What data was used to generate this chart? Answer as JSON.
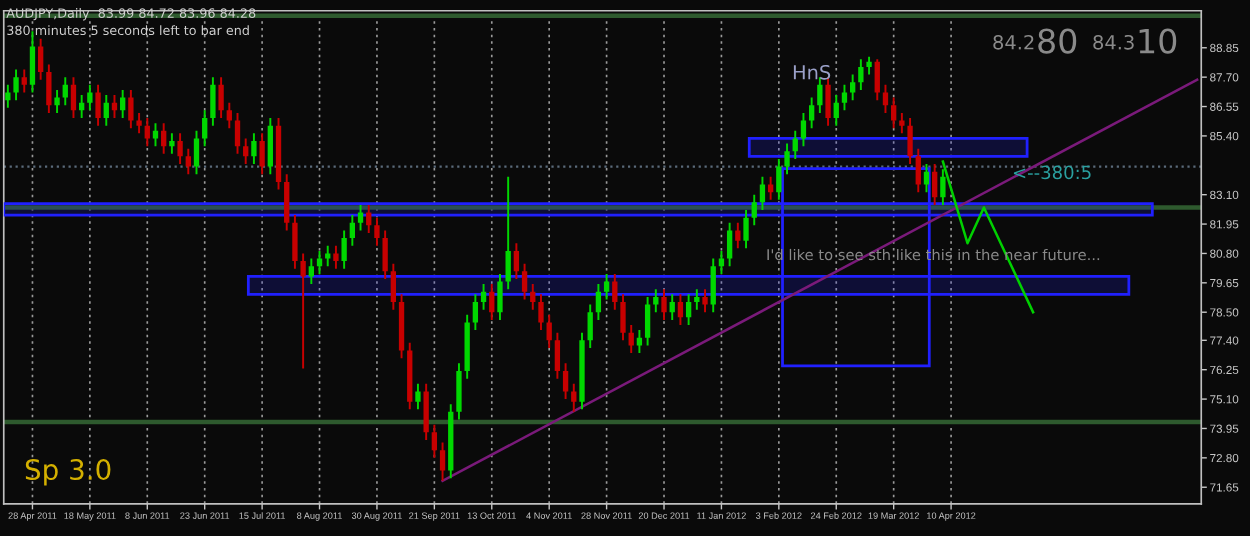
{
  "chart_data": {
    "type": "candlestick",
    "title": "AUDJPY,Daily  83.99 84.72 83.96 84.28",
    "subtitle": "380 minutes 5 seconds left to bar end",
    "categories": [
      null,
      null,
      null,
      "28 Apr 2011",
      null,
      null,
      null,
      null,
      null,
      null,
      "18 May 2011",
      null,
      null,
      null,
      null,
      null,
      null,
      "8 Jun 2011",
      null,
      null,
      null,
      null,
      null,
      null,
      "23 Jun 2011",
      null,
      null,
      null,
      null,
      null,
      null,
      "15 Jul 2011",
      null,
      null,
      null,
      null,
      null,
      null,
      "8 Aug 2011",
      null,
      null,
      null,
      null,
      null,
      null,
      "30 Aug 2011",
      null,
      null,
      null,
      null,
      null,
      null,
      "21 Sep 2011",
      null,
      null,
      null,
      null,
      null,
      null,
      "13 Oct 2011",
      null,
      null,
      null,
      null,
      null,
      null,
      "4 Nov 2011",
      null,
      null,
      null,
      null,
      null,
      null,
      "28 Nov 2011",
      null,
      null,
      null,
      null,
      null,
      null,
      "20 Dec 2011",
      null,
      null,
      null,
      null,
      null,
      null,
      "11 Jan 2012",
      null,
      null,
      null,
      null,
      null,
      null,
      "3 Feb 2012",
      null,
      null,
      null,
      null,
      null,
      null,
      "24 Feb 2012",
      null,
      null,
      null,
      null,
      null,
      null,
      "19 Mar 2012",
      null,
      null,
      null,
      null,
      null,
      null,
      "10 Apr 2012",
      null,
      null,
      null,
      null,
      null,
      null,
      null,
      null,
      null,
      null,
      null,
      null,
      null,
      null,
      null,
      null,
      null,
      null,
      null,
      null,
      null,
      null,
      null,
      null,
      null,
      null,
      null,
      null,
      null,
      null
    ],
    "ohlc": [
      [
        86.8,
        87.4,
        86.5,
        87.1
      ],
      [
        87.1,
        88.0,
        86.8,
        87.7
      ],
      [
        87.7,
        88.0,
        87.1,
        87.4
      ],
      [
        87.4,
        89.5,
        87.1,
        88.9
      ],
      [
        88.9,
        89.2,
        87.6,
        87.9
      ],
      [
        87.9,
        88.2,
        86.3,
        86.6
      ],
      [
        86.6,
        87.2,
        86.3,
        86.9
      ],
      [
        86.9,
        87.7,
        86.6,
        87.4
      ],
      [
        87.4,
        87.7,
        86.1,
        86.4
      ],
      [
        86.4,
        87.0,
        86.1,
        86.7
      ],
      [
        86.7,
        87.4,
        86.4,
        87.1
      ],
      [
        87.1,
        87.4,
        85.8,
        86.1
      ],
      [
        86.1,
        87.0,
        85.8,
        86.7
      ],
      [
        86.7,
        87.0,
        86.1,
        86.4
      ],
      [
        86.4,
        87.2,
        86.1,
        86.9
      ],
      [
        86.9,
        87.2,
        85.7,
        86.0
      ],
      [
        86.0,
        86.3,
        85.5,
        85.8
      ],
      [
        85.8,
        86.1,
        85.0,
        85.3
      ],
      [
        85.3,
        85.9,
        85.0,
        85.6
      ],
      [
        85.6,
        85.9,
        84.7,
        85.0
      ],
      [
        85.0,
        85.5,
        84.7,
        85.2
      ],
      [
        85.2,
        85.5,
        84.3,
        84.6
      ],
      [
        84.6,
        84.9,
        83.9,
        84.2
      ],
      [
        84.2,
        85.6,
        83.9,
        85.3
      ],
      [
        85.3,
        86.4,
        85.0,
        86.1
      ],
      [
        86.1,
        87.7,
        85.8,
        87.4
      ],
      [
        87.4,
        87.7,
        86.1,
        86.4
      ],
      [
        86.4,
        86.7,
        85.7,
        86.0
      ],
      [
        86.0,
        86.3,
        84.7,
        85.0
      ],
      [
        85.0,
        85.3,
        84.3,
        84.6
      ],
      [
        84.6,
        85.5,
        84.3,
        85.2
      ],
      [
        85.2,
        85.5,
        83.9,
        84.2
      ],
      [
        84.2,
        86.1,
        83.9,
        85.8
      ],
      [
        85.8,
        86.1,
        83.3,
        83.6
      ],
      [
        83.6,
        83.9,
        81.7,
        82.0
      ],
      [
        82.0,
        82.3,
        80.2,
        80.5
      ],
      [
        80.5,
        80.8,
        76.3,
        79.9
      ],
      [
        79.9,
        80.6,
        79.6,
        80.3
      ],
      [
        80.3,
        80.9,
        80.0,
        80.6
      ],
      [
        80.6,
        81.1,
        80.3,
        80.8
      ],
      [
        80.8,
        81.1,
        80.2,
        80.5
      ],
      [
        80.5,
        81.7,
        80.2,
        81.4
      ],
      [
        81.4,
        82.3,
        81.1,
        82.0
      ],
      [
        82.0,
        82.7,
        81.7,
        82.4
      ],
      [
        82.4,
        82.7,
        81.6,
        81.9
      ],
      [
        81.9,
        82.2,
        81.1,
        81.4
      ],
      [
        81.4,
        81.7,
        79.8,
        80.1
      ],
      [
        80.1,
        80.4,
        78.6,
        78.9
      ],
      [
        78.9,
        79.2,
        76.7,
        77.0
      ],
      [
        77.0,
        77.3,
        74.7,
        75.0
      ],
      [
        75.0,
        75.7,
        74.7,
        75.4
      ],
      [
        75.4,
        75.7,
        73.5,
        73.8
      ],
      [
        73.8,
        74.1,
        72.8,
        73.1
      ],
      [
        73.1,
        73.4,
        71.9,
        72.3
      ],
      [
        72.3,
        74.9,
        72.0,
        74.6
      ],
      [
        74.6,
        76.5,
        74.3,
        76.2
      ],
      [
        76.2,
        78.4,
        75.9,
        78.1
      ],
      [
        78.1,
        79.2,
        77.8,
        78.9
      ],
      [
        78.9,
        79.6,
        78.6,
        79.3
      ],
      [
        79.3,
        79.6,
        78.2,
        78.5
      ],
      [
        78.5,
        80.0,
        78.2,
        79.7
      ],
      [
        79.7,
        83.8,
        79.4,
        80.9
      ],
      [
        80.9,
        81.2,
        79.8,
        80.1
      ],
      [
        80.1,
        80.4,
        79.0,
        79.3
      ],
      [
        79.3,
        79.6,
        78.6,
        78.9
      ],
      [
        78.9,
        79.2,
        77.8,
        78.1
      ],
      [
        78.1,
        78.4,
        77.1,
        77.4
      ],
      [
        77.4,
        77.7,
        75.9,
        76.2
      ],
      [
        76.2,
        76.5,
        75.1,
        75.4
      ],
      [
        75.4,
        75.7,
        74.6,
        75.0
      ],
      [
        75.0,
        77.7,
        74.7,
        77.4
      ],
      [
        77.4,
        78.8,
        77.1,
        78.5
      ],
      [
        78.5,
        79.6,
        78.2,
        79.3
      ],
      [
        79.3,
        80.0,
        79.0,
        79.7
      ],
      [
        79.7,
        80.0,
        78.6,
        78.9
      ],
      [
        78.9,
        79.2,
        77.4,
        77.7
      ],
      [
        77.7,
        78.0,
        76.9,
        77.2
      ],
      [
        77.2,
        77.8,
        76.9,
        77.5
      ],
      [
        77.5,
        79.1,
        77.2,
        78.8
      ],
      [
        78.8,
        79.4,
        78.5,
        79.1
      ],
      [
        79.1,
        79.4,
        78.2,
        78.5
      ],
      [
        78.5,
        79.2,
        78.2,
        78.9
      ],
      [
        78.9,
        79.2,
        78.0,
        78.3
      ],
      [
        78.3,
        79.2,
        78.0,
        78.9
      ],
      [
        78.9,
        79.4,
        78.6,
        79.1
      ],
      [
        79.1,
        79.4,
        78.5,
        78.8
      ],
      [
        78.8,
        80.6,
        78.5,
        80.3
      ],
      [
        80.3,
        80.9,
        80.0,
        80.6
      ],
      [
        80.6,
        82.0,
        80.3,
        81.7
      ],
      [
        81.7,
        82.0,
        81.0,
        81.3
      ],
      [
        81.3,
        82.5,
        81.0,
        82.2
      ],
      [
        82.2,
        83.1,
        81.9,
        82.8
      ],
      [
        82.8,
        83.8,
        82.5,
        83.5
      ],
      [
        83.5,
        83.8,
        82.9,
        83.2
      ],
      [
        83.2,
        84.5,
        82.9,
        84.2
      ],
      [
        84.2,
        85.1,
        83.9,
        84.8
      ],
      [
        84.8,
        85.6,
        84.5,
        85.3
      ],
      [
        85.3,
        86.3,
        85.0,
        86.0
      ],
      [
        86.0,
        86.9,
        85.7,
        86.6
      ],
      [
        86.6,
        87.7,
        86.3,
        87.4
      ],
      [
        87.4,
        87.7,
        85.8,
        86.1
      ],
      [
        86.1,
        87.0,
        85.8,
        86.7
      ],
      [
        86.7,
        87.4,
        86.4,
        87.1
      ],
      [
        87.1,
        87.8,
        86.8,
        87.5
      ],
      [
        87.5,
        88.4,
        87.2,
        88.1
      ],
      [
        88.1,
        88.5,
        87.8,
        88.3
      ],
      [
        88.3,
        88.4,
        86.8,
        87.1
      ],
      [
        87.1,
        87.4,
        86.3,
        86.6
      ],
      [
        86.6,
        86.9,
        85.7,
        86.0
      ],
      [
        86.0,
        86.3,
        85.5,
        85.8
      ],
      [
        85.8,
        86.1,
        84.3,
        84.6
      ],
      [
        84.6,
        84.9,
        83.2,
        83.5
      ],
      [
        83.5,
        84.3,
        83.2,
        84.0
      ],
      [
        84.0,
        84.3,
        82.7,
        83.0
      ],
      [
        83.0,
        84.1,
        82.7,
        83.8
      ],
      null,
      null,
      null,
      null,
      null,
      null,
      null,
      null,
      null,
      null,
      null,
      null,
      null,
      null,
      null,
      null,
      null,
      null,
      null,
      null,
      null,
      null,
      null,
      null,
      null,
      null,
      null,
      null,
      null,
      null,
      null
    ],
    "colors": [
      "#00d800",
      "#00d800",
      "#c80000",
      "#00d800",
      "#c80000",
      "#c80000",
      "#00d800",
      "#00d800",
      "#c80000",
      "#00d800",
      "#00d800",
      "#c80000",
      "#00d800",
      "#c80000",
      "#00d800",
      "#c80000",
      "#c80000",
      "#c80000",
      "#00d800",
      "#c80000",
      "#00d800",
      "#c80000",
      "#c80000",
      "#00d800",
      "#00d800",
      "#00d800",
      "#c80000",
      "#c80000",
      "#c80000",
      "#c80000",
      "#00d800",
      "#c80000",
      "#00d800",
      "#c80000",
      "#c80000",
      "#c80000",
      "#c80000",
      "#00d800",
      "#00d800",
      "#00d800",
      "#c80000",
      "#00d800",
      "#00d800",
      "#00d800",
      "#c80000",
      "#c80000",
      "#c80000",
      "#c80000",
      "#c80000",
      "#c80000",
      "#00d800",
      "#c80000",
      "#c80000",
      "#c80000",
      "#00d800",
      "#00d800",
      "#00d800",
      "#00d800",
      "#00d800",
      "#c80000",
      "#00d800",
      "#00d800",
      "#c80000",
      "#c80000",
      "#c80000",
      "#c80000",
      "#c80000",
      "#c80000",
      "#c80000",
      "#c80000",
      "#00d800",
      "#00d800",
      "#00d800",
      "#00d800",
      "#c80000",
      "#c80000",
      "#c80000",
      "#00d800",
      "#00d800",
      "#00d800",
      "#c80000",
      "#00d800",
      "#c80000",
      "#00d800",
      "#00d800",
      "#c80000",
      "#00d800",
      "#00d800",
      "#00d800",
      "#c80000",
      "#00d800",
      "#00d800",
      "#00d800",
      "#c80000",
      "#00d800",
      "#00d800",
      "#00d800",
      "#00d800",
      "#00d800",
      "#00d800",
      "#c80000",
      "#00d800",
      "#00d800",
      "#00d800",
      "#00d800",
      "#00d800",
      "#c80000",
      "#c80000",
      "#c80000",
      "#c80000",
      "#c80000",
      "#c80000",
      "#00d800",
      "#c80000",
      "#00d800",
      null,
      null,
      null,
      null,
      null,
      null,
      null,
      null,
      null,
      null,
      null,
      null,
      null,
      null,
      null,
      null,
      null,
      null,
      null,
      null,
      null,
      null,
      null,
      null,
      null,
      null,
      null,
      null,
      null,
      null,
      null
    ],
    "series": [
      {
        "type": "line",
        "values": [
          null,
          null,
          null,
          null,
          null,
          null,
          null,
          null,
          null,
          null,
          null,
          null,
          null,
          null,
          null,
          null,
          null,
          null,
          null,
          null,
          null,
          null,
          null,
          null,
          null,
          null,
          null,
          null,
          null,
          null,
          null,
          null,
          null,
          null,
          null,
          null,
          null,
          null,
          null,
          null,
          null,
          null,
          null,
          null,
          null,
          null,
          null,
          null,
          null,
          null,
          null,
          null,
          null,
          71.9,
          null,
          null,
          null,
          null,
          null,
          null,
          null,
          null,
          null,
          null,
          null,
          null,
          null,
          null,
          null,
          null,
          null,
          null,
          null,
          null,
          null,
          null,
          null,
          null,
          null,
          null,
          null,
          null,
          null,
          null,
          null,
          null,
          null,
          null,
          null,
          null,
          null,
          null,
          null,
          null,
          null,
          null,
          null,
          null,
          null,
          null,
          null,
          null,
          null,
          null,
          null,
          null,
          null,
          null,
          null,
          null,
          null,
          null,
          null,
          null,
          null,
          null,
          null,
          null,
          null,
          null,
          null,
          null,
          null,
          null,
          null,
          null,
          null,
          null,
          null,
          null,
          null,
          null,
          null,
          null,
          null,
          null,
          null,
          null,
          null,
          null,
          null,
          null,
          null,
          null,
          null,
          87.6
        ],
        "color": "#7a1a7a"
      },
      {
        "type": "line",
        "values": [
          null,
          null,
          null,
          null,
          null,
          null,
          null,
          null,
          null,
          null,
          null,
          null,
          null,
          null,
          null,
          null,
          null,
          null,
          null,
          null,
          null,
          null,
          null,
          null,
          null,
          null,
          null,
          null,
          null,
          null,
          null,
          null,
          null,
          null,
          null,
          null,
          null,
          null,
          null,
          null,
          null,
          null,
          null,
          null,
          null,
          null,
          null,
          null,
          null,
          null,
          null,
          null,
          null,
          null,
          null,
          null,
          null,
          null,
          null,
          null,
          null,
          null,
          null,
          null,
          null,
          null,
          null,
          null,
          null,
          null,
          null,
          null,
          null,
          null,
          null,
          null,
          null,
          null,
          null,
          null,
          null,
          null,
          null,
          null,
          null,
          null,
          null,
          null,
          null,
          null,
          null,
          null,
          null,
          null,
          null,
          null,
          null,
          null,
          null,
          null,
          null,
          null,
          null,
          null,
          null,
          null,
          null,
          null,
          null,
          null,
          null,
          null,
          null,
          null,
          84.4,
          null,
          null,
          81.2,
          null,
          82.6,
          null,
          null,
          null,
          null,
          null,
          78.5,
          null,
          null,
          null,
          null,
          null,
          null,
          null,
          null,
          null,
          null,
          null,
          null,
          null,
          null,
          null,
          null,
          null,
          null,
          null,
          null
        ],
        "color": "#00d000"
      }
    ],
    "ylim": [
      71.0,
      90.3
    ],
    "yticks": [
      {
        "value": 88.85,
        "label": "88.85"
      },
      {
        "value": 87.7,
        "label": "87.70"
      },
      {
        "value": 86.55,
        "label": "86.55"
      },
      {
        "value": 85.4,
        "label": "85.40"
      },
      {
        "value": 83.1,
        "label": "83.10"
      },
      {
        "value": 81.95,
        "label": "81.95"
      },
      {
        "value": 80.8,
        "label": "80.80"
      },
      {
        "value": 79.65,
        "label": "79.65"
      },
      {
        "value": 78.5,
        "label": "78.50"
      },
      {
        "value": 77.4,
        "label": "77.40"
      },
      {
        "value": 76.25,
        "label": "76.25"
      },
      {
        "value": 75.1,
        "label": "75.10"
      },
      {
        "value": 73.95,
        "label": "73.95"
      },
      {
        "value": 72.8,
        "label": "72.80"
      },
      {
        "value": 71.65,
        "label": "71.65"
      }
    ],
    "ref_lines": [
      {
        "axis": "y",
        "value": 90.1,
        "color": "#2e5a2e"
      },
      {
        "axis": "y",
        "value": 82.6,
        "color": "#2e5a2e"
      },
      {
        "axis": "y",
        "value": 74.2,
        "color": "#2e5a2e"
      },
      {
        "axis": "y",
        "value": 84.2,
        "color": "#5a6a7a",
        "line_style": "dotted"
      }
    ],
    "bands": [
      {
        "axis": "y",
        "from": 84.6,
        "to": 85.3,
        "color": "#2020ff"
      },
      {
        "axis": "y",
        "from": 82.3,
        "to": 82.75,
        "color": "#2020ff"
      },
      {
        "axis": "y",
        "from": 79.2,
        "to": 79.9,
        "color": "#2020ff"
      }
    ],
    "annotations": [
      "HnS",
      "<--380:5",
      "I'd like to see sth like this in the near future...",
      "Sp 3.0",
      "84.2",
      "80",
      "84.3",
      "10"
    ],
    "grid": "x",
    "legend": false
  }
}
